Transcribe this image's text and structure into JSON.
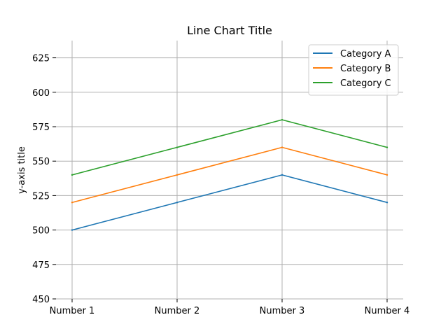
{
  "chart_data": {
    "type": "line",
    "title": "Line Chart Title",
    "xlabel": "",
    "ylabel": "y-axis title",
    "categories": [
      "Number 1",
      "Number 2",
      "Number 3",
      "Number 4"
    ],
    "ylim": [
      450,
      637.5
    ],
    "yticks": [
      450,
      475,
      500,
      525,
      550,
      575,
      600,
      625
    ],
    "grid": true,
    "legend_position": "top-right",
    "series": [
      {
        "name": "Category A",
        "color": "#1f77b4",
        "values": [
          500,
          520,
          540,
          520
        ]
      },
      {
        "name": "Category B",
        "color": "#ff7f0e",
        "values": [
          520,
          540,
          560,
          540
        ]
      },
      {
        "name": "Category C",
        "color": "#2ca02c",
        "values": [
          540,
          560,
          580,
          560
        ]
      }
    ]
  }
}
